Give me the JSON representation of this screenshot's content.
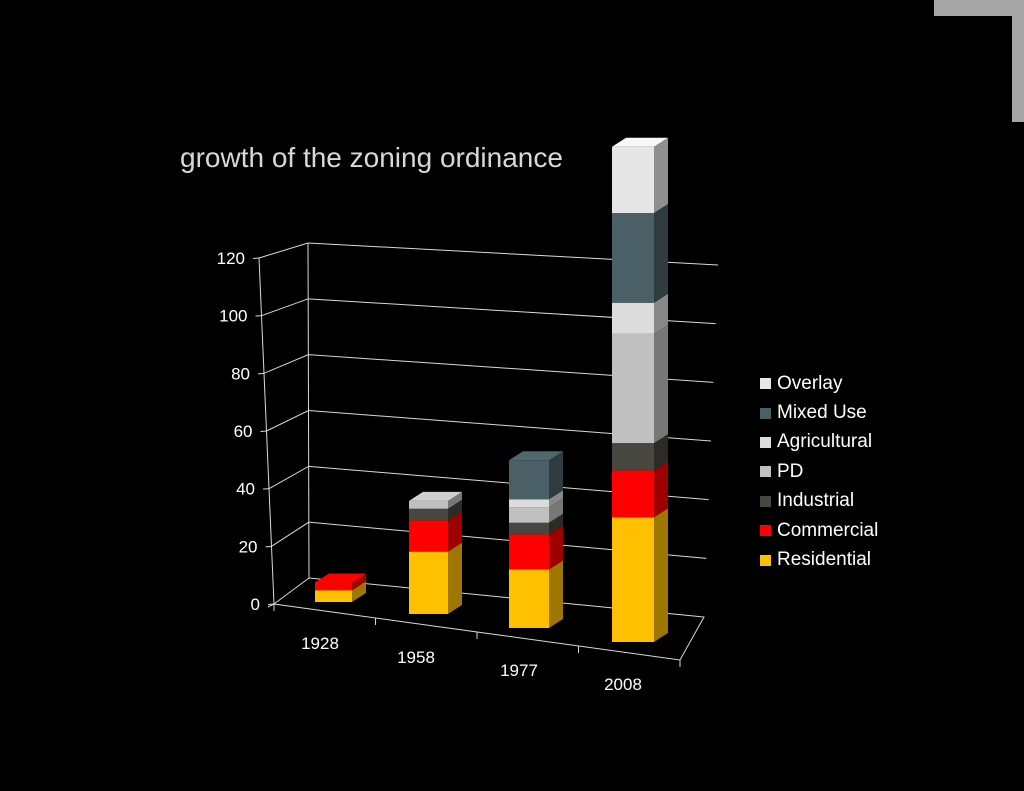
{
  "chart_data": {
    "type": "bar",
    "stacked": true,
    "three_d": true,
    "title": "growth of the zoning ordinance",
    "xlabel": "",
    "ylabel": "",
    "categories": [
      "1928",
      "1958",
      "1977",
      "2008"
    ],
    "ylim": [
      0,
      120
    ],
    "y_ticks": [
      "0",
      "20",
      "40",
      "60",
      "80",
      "100",
      "120"
    ],
    "grid": true,
    "legend_position": "right",
    "series": [
      {
        "name": "Residential",
        "color": "#ffc000",
        "values": [
          3,
          16,
          15,
          32
        ]
      },
      {
        "name": "Commercial",
        "color": "#ff0000",
        "values": [
          2,
          8,
          9,
          12
        ]
      },
      {
        "name": "Industrial",
        "color": "#47473f",
        "values": [
          0,
          3,
          3,
          7
        ]
      },
      {
        "name": "PD",
        "color": "#c0c0c0",
        "values": [
          0,
          2,
          4,
          28
        ]
      },
      {
        "name": "Agricultural",
        "color": "#dcdcdc",
        "values": [
          0,
          0,
          2,
          8
        ]
      },
      {
        "name": "Mixed Use",
        "color": "#4a5f66",
        "values": [
          0,
          0,
          10,
          23
        ]
      },
      {
        "name": "Overlay",
        "color": "#e6e6e6",
        "values": [
          0,
          0,
          0,
          17
        ]
      }
    ]
  }
}
